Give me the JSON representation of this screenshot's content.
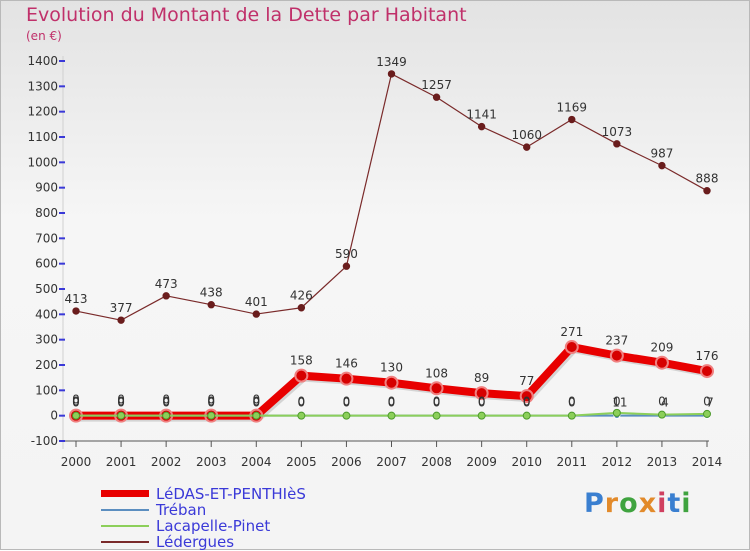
{
  "title": "Evolution du Montant de la Dette par Habitant",
  "subtitle": "(en €)",
  "logo": {
    "text": "Proxiti",
    "letters": [
      {
        "ch": "P",
        "color": "#3a7fd0"
      },
      {
        "ch": "r",
        "color": "#e28a2a"
      },
      {
        "ch": "o",
        "color": "#3fa33f"
      },
      {
        "ch": "x",
        "color": "#e28a2a"
      },
      {
        "ch": "i",
        "color": "#d04060"
      },
      {
        "ch": "t",
        "color": "#3a7fd0"
      },
      {
        "ch": "i",
        "color": "#3fa33f"
      }
    ]
  },
  "chart_data": {
    "type": "line",
    "title": "Evolution du Montant de la Dette par Habitant",
    "subtitle": "(en €)",
    "x": [
      "2000",
      "2001",
      "2002",
      "2003",
      "2004",
      "2005",
      "2006",
      "2007",
      "2008",
      "2009",
      "2010",
      "2011",
      "2012",
      "2013",
      "2014"
    ],
    "ylim": [
      -100,
      1400
    ],
    "yticks": [
      -100,
      0,
      100,
      200,
      300,
      400,
      500,
      600,
      700,
      800,
      900,
      1000,
      1100,
      1200,
      1300,
      1400
    ],
    "grid": false,
    "legend_position": "bottom-left",
    "series": [
      {
        "name": "LéDAS-ET-PENTHIèS",
        "color": "#e80000",
        "values": [
          0,
          0,
          0,
          0,
          0,
          158,
          146,
          130,
          108,
          89,
          77,
          271,
          237,
          209,
          176
        ],
        "labels": [
          "0",
          "0",
          "0",
          "0",
          "0",
          "158",
          "146",
          "130",
          "108",
          "89",
          "77",
          "271",
          "237",
          "209",
          "176"
        ]
      },
      {
        "name": "Tréban",
        "color": "#5b8ec0",
        "values": [
          0,
          0,
          0,
          0,
          0,
          0,
          0,
          0,
          0,
          0,
          0,
          0,
          0,
          0,
          0
        ],
        "labels": [
          "0",
          "0",
          "0",
          "0",
          "0",
          "0",
          "0",
          "0",
          "0",
          "0",
          "0",
          "0",
          "0",
          "0",
          "0"
        ]
      },
      {
        "name": "Lacapelle-Pinet",
        "color": "#8ccf5a",
        "values": [
          0,
          0,
          0,
          0,
          0,
          0,
          0,
          0,
          0,
          0,
          0,
          0,
          11,
          4,
          7
        ],
        "labels": [
          "0",
          "0",
          "0",
          "0",
          "0",
          "0",
          "0",
          "0",
          "0",
          "0",
          "0",
          "0",
          "11",
          "4",
          "7"
        ]
      },
      {
        "name": "Lédergues",
        "color": "#7a2a2a",
        "values": [
          413,
          377,
          473,
          438,
          401,
          426,
          590,
          1349,
          1257,
          1141,
          1060,
          1169,
          1073,
          987,
          888
        ],
        "labels": [
          "413",
          "377",
          "473",
          "438",
          "401",
          "426",
          "590",
          "1349",
          "1257",
          "1141",
          "1060",
          "1169",
          "1073",
          "987",
          "888"
        ]
      }
    ]
  }
}
